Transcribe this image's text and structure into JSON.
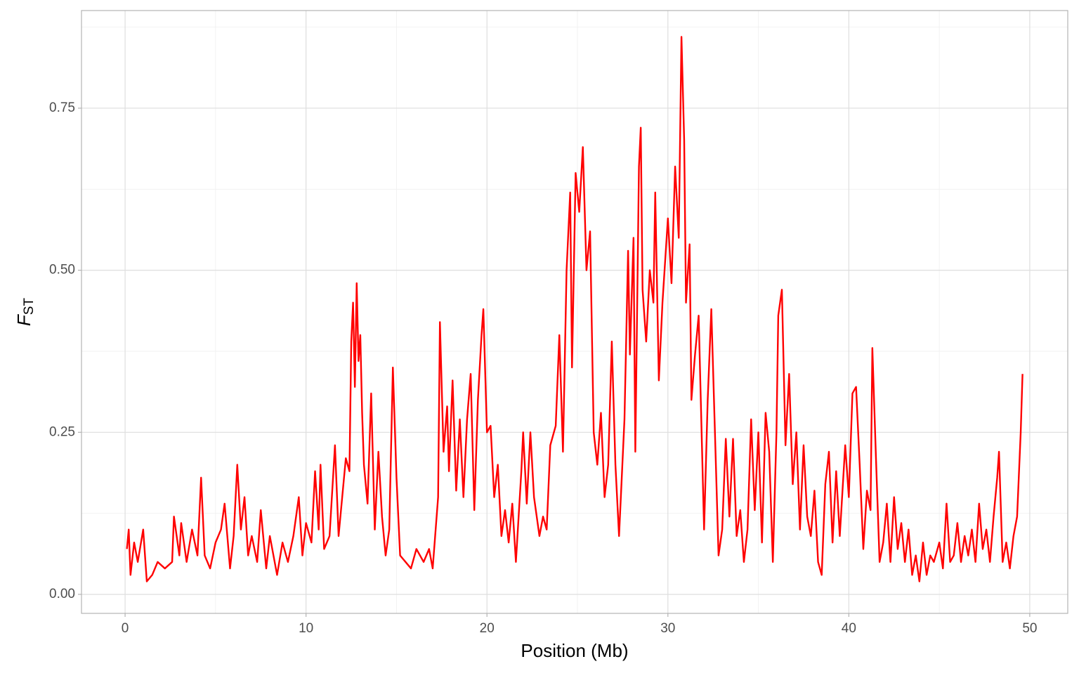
{
  "chart_data": {
    "type": "line",
    "x_label": "Position (Mb)",
    "y_label": "F",
    "y_label_subscript": "ST",
    "color": "#ff0000",
    "grid": true,
    "xlim": [
      -2.41,
      52.1
    ],
    "ylim": [
      -0.0293,
      0.9006
    ],
    "xticks": [
      0,
      10,
      20,
      30,
      40,
      50
    ],
    "yticks": [
      {
        "value": 0,
        "label": "0.00"
      },
      {
        "value": 0.25,
        "label": "0.25"
      },
      {
        "value": 0.5,
        "label": "0.50"
      },
      {
        "value": 0.75,
        "label": "0.75"
      }
    ],
    "x": [
      0.1,
      0.2,
      0.3,
      0.5,
      0.7,
      1.0,
      1.2,
      1.5,
      1.8,
      2.2,
      2.6,
      2.7,
      3.0,
      3.1,
      3.4,
      3.7,
      4.0,
      4.2,
      4.4,
      4.7,
      5.0,
      5.3,
      5.5,
      5.8,
      6.0,
      6.2,
      6.4,
      6.6,
      6.8,
      7.0,
      7.3,
      7.5,
      7.8,
      8.0,
      8.4,
      8.7,
      9.0,
      9.3,
      9.6,
      9.8,
      10.0,
      10.3,
      10.5,
      10.7,
      10.8,
      11.0,
      11.3,
      11.6,
      11.8,
      12.0,
      12.2,
      12.4,
      12.5,
      12.6,
      12.7,
      12.8,
      12.9,
      13.0,
      13.1,
      13.2,
      13.4,
      13.6,
      13.8,
      14.0,
      14.2,
      14.4,
      14.6,
      14.8,
      15.0,
      15.2,
      15.5,
      15.8,
      16.1,
      16.5,
      16.8,
      17.0,
      17.3,
      17.4,
      17.6,
      17.8,
      17.9,
      18.1,
      18.3,
      18.5,
      18.7,
      18.9,
      19.1,
      19.3,
      19.5,
      19.7,
      19.8,
      20.0,
      20.2,
      20.4,
      20.6,
      20.8,
      21.0,
      21.2,
      21.4,
      21.6,
      21.9,
      22.0,
      22.2,
      22.4,
      22.6,
      22.9,
      23.1,
      23.3,
      23.5,
      23.8,
      24.0,
      24.2,
      24.4,
      24.6,
      24.7,
      24.9,
      25.1,
      25.3,
      25.5,
      25.7,
      25.9,
      26.1,
      26.3,
      26.5,
      26.7,
      26.9,
      27.1,
      27.3,
      27.6,
      27.8,
      27.9,
      28.1,
      28.2,
      28.4,
      28.5,
      28.6,
      28.8,
      29.0,
      29.2,
      29.3,
      29.5,
      29.7,
      30.0,
      30.2,
      30.4,
      30.6,
      30.75,
      30.9,
      31.0,
      31.2,
      31.3,
      31.5,
      31.7,
      31.9,
      32.0,
      32.2,
      32.4,
      32.6,
      32.8,
      33.0,
      33.2,
      33.4,
      33.6,
      33.8,
      34.0,
      34.2,
      34.4,
      34.6,
      34.8,
      35.0,
      35.2,
      35.4,
      35.6,
      35.8,
      36.0,
      36.1,
      36.3,
      36.5,
      36.7,
      36.9,
      37.1,
      37.3,
      37.5,
      37.7,
      37.9,
      38.1,
      38.3,
      38.5,
      38.7,
      38.9,
      39.1,
      39.3,
      39.5,
      39.8,
      40.0,
      40.2,
      40.4,
      40.6,
      40.8,
      41.0,
      41.2,
      41.3,
      41.5,
      41.7,
      41.9,
      42.1,
      42.3,
      42.5,
      42.7,
      42.9,
      43.1,
      43.3,
      43.5,
      43.7,
      43.9,
      44.1,
      44.3,
      44.5,
      44.7,
      45.0,
      45.2,
      45.4,
      45.6,
      45.8,
      46.0,
      46.2,
      46.4,
      46.6,
      46.8,
      47.0,
      47.2,
      47.4,
      47.6,
      47.8,
      48.0,
      48.2,
      48.3,
      48.5,
      48.7,
      48.9,
      49.1,
      49.3,
      49.5,
      49.6
    ],
    "values": [
      0.07,
      0.1,
      0.03,
      0.08,
      0.05,
      0.1,
      0.02,
      0.03,
      0.05,
      0.04,
      0.05,
      0.12,
      0.06,
      0.11,
      0.05,
      0.1,
      0.06,
      0.18,
      0.06,
      0.04,
      0.08,
      0.1,
      0.14,
      0.04,
      0.09,
      0.2,
      0.1,
      0.15,
      0.06,
      0.09,
      0.05,
      0.13,
      0.04,
      0.09,
      0.03,
      0.08,
      0.05,
      0.09,
      0.15,
      0.06,
      0.11,
      0.08,
      0.19,
      0.1,
      0.2,
      0.07,
      0.09,
      0.23,
      0.09,
      0.15,
      0.21,
      0.19,
      0.39,
      0.45,
      0.32,
      0.48,
      0.36,
      0.4,
      0.28,
      0.2,
      0.14,
      0.31,
      0.1,
      0.22,
      0.12,
      0.06,
      0.1,
      0.35,
      0.18,
      0.06,
      0.05,
      0.04,
      0.07,
      0.05,
      0.07,
      0.04,
      0.15,
      0.42,
      0.22,
      0.29,
      0.19,
      0.33,
      0.16,
      0.27,
      0.15,
      0.27,
      0.34,
      0.13,
      0.3,
      0.4,
      0.44,
      0.25,
      0.26,
      0.15,
      0.2,
      0.09,
      0.13,
      0.08,
      0.14,
      0.05,
      0.19,
      0.25,
      0.14,
      0.25,
      0.15,
      0.09,
      0.12,
      0.1,
      0.23,
      0.26,
      0.4,
      0.22,
      0.5,
      0.62,
      0.35,
      0.65,
      0.59,
      0.69,
      0.5,
      0.56,
      0.25,
      0.2,
      0.28,
      0.15,
      0.2,
      0.39,
      0.2,
      0.09,
      0.27,
      0.53,
      0.37,
      0.55,
      0.22,
      0.66,
      0.72,
      0.47,
      0.39,
      0.5,
      0.45,
      0.62,
      0.33,
      0.45,
      0.58,
      0.48,
      0.66,
      0.55,
      0.86,
      0.7,
      0.45,
      0.54,
      0.3,
      0.37,
      0.43,
      0.21,
      0.1,
      0.3,
      0.44,
      0.25,
      0.06,
      0.1,
      0.24,
      0.12,
      0.24,
      0.09,
      0.13,
      0.05,
      0.1,
      0.27,
      0.13,
      0.25,
      0.08,
      0.28,
      0.22,
      0.05,
      0.25,
      0.43,
      0.47,
      0.23,
      0.34,
      0.17,
      0.25,
      0.1,
      0.23,
      0.12,
      0.09,
      0.16,
      0.05,
      0.03,
      0.17,
      0.22,
      0.08,
      0.19,
      0.09,
      0.23,
      0.15,
      0.31,
      0.32,
      0.2,
      0.07,
      0.16,
      0.13,
      0.38,
      0.21,
      0.05,
      0.08,
      0.14,
      0.05,
      0.15,
      0.07,
      0.11,
      0.05,
      0.1,
      0.03,
      0.06,
      0.02,
      0.08,
      0.03,
      0.06,
      0.05,
      0.08,
      0.04,
      0.14,
      0.05,
      0.06,
      0.11,
      0.05,
      0.09,
      0.06,
      0.1,
      0.05,
      0.14,
      0.07,
      0.1,
      0.05,
      0.12,
      0.18,
      0.22,
      0.05,
      0.08,
      0.04,
      0.09,
      0.12,
      0.25,
      0.34
    ]
  }
}
